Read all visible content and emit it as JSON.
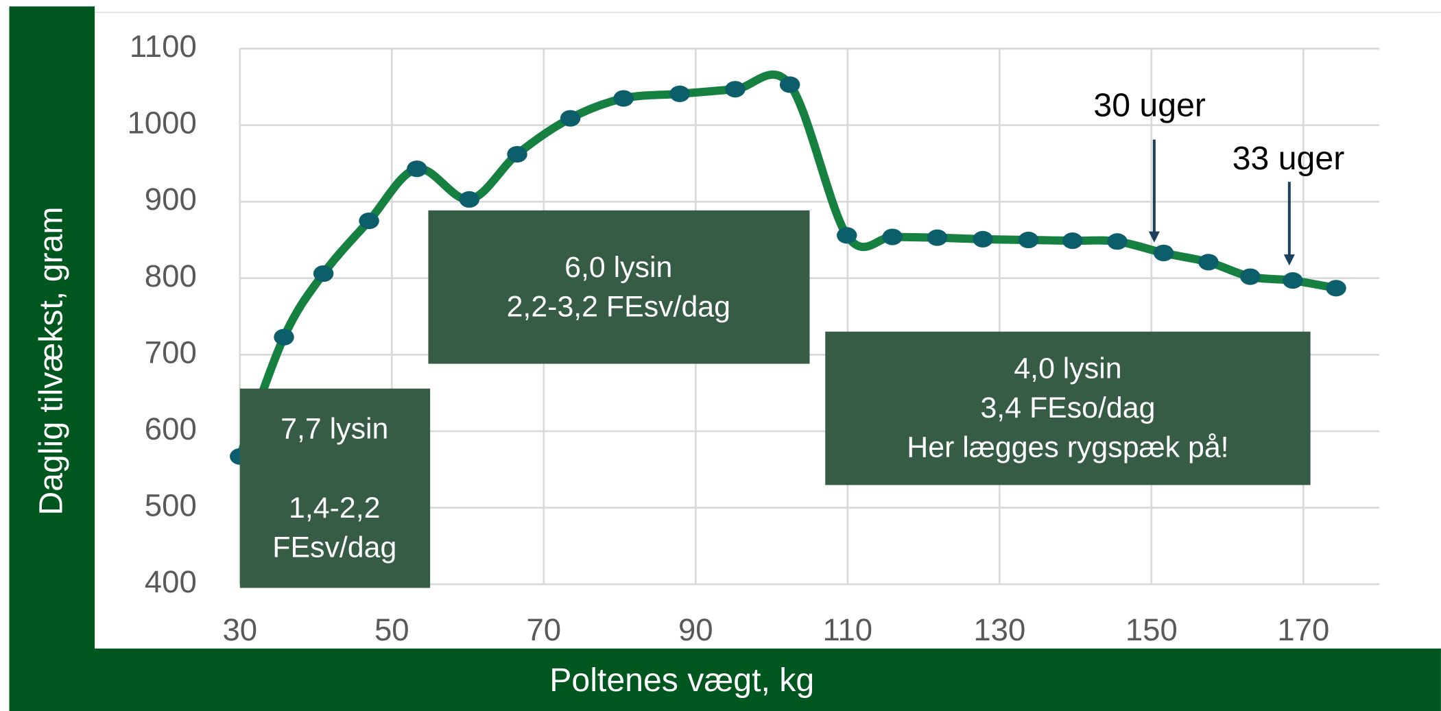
{
  "chart_data": {
    "type": "line",
    "xlabel": "Poltenes vægt, kg",
    "ylabel": "Daglig tilvækst, gram",
    "x": [
      30,
      35.8,
      41,
      47,
      53.3,
      60.2,
      66.5,
      73.5,
      80.5,
      87.9,
      95.2,
      102.4,
      109.9,
      115.9,
      121.8,
      127.8,
      133.8,
      139.6,
      145.5,
      151.6,
      157.5,
      163,
      168.6,
      174.3
    ],
    "values": [
      567,
      723,
      806,
      875,
      943,
      903,
      962,
      1009,
      1035,
      1041,
      1047,
      1053,
      856,
      854,
      853,
      851,
      850,
      849,
      848,
      833,
      821,
      802,
      797,
      787
    ],
    "color": "#168040",
    "marker_color": "#0d5e6b",
    "xlim": [
      30,
      180
    ],
    "xticks": [
      30,
      50,
      70,
      90,
      110,
      130,
      150,
      170
    ],
    "ylim": [
      400,
      1100
    ],
    "yticks": [
      400,
      500,
      600,
      700,
      800,
      900,
      1000,
      1100
    ],
    "grid": true,
    "annotations": {
      "box1": [
        "7,7 lysin",
        "1,4-2,2",
        "FEsv/dag"
      ],
      "box2": [
        "6,0 lysin",
        "2,2-3,2 FEsv/dag"
      ],
      "box3": [
        "4,0 lysin",
        "3,4 FEso/dag",
        "Her lægges rygspæk på!"
      ],
      "arrow1": "30 uger",
      "arrow2": "33 uger"
    }
  }
}
